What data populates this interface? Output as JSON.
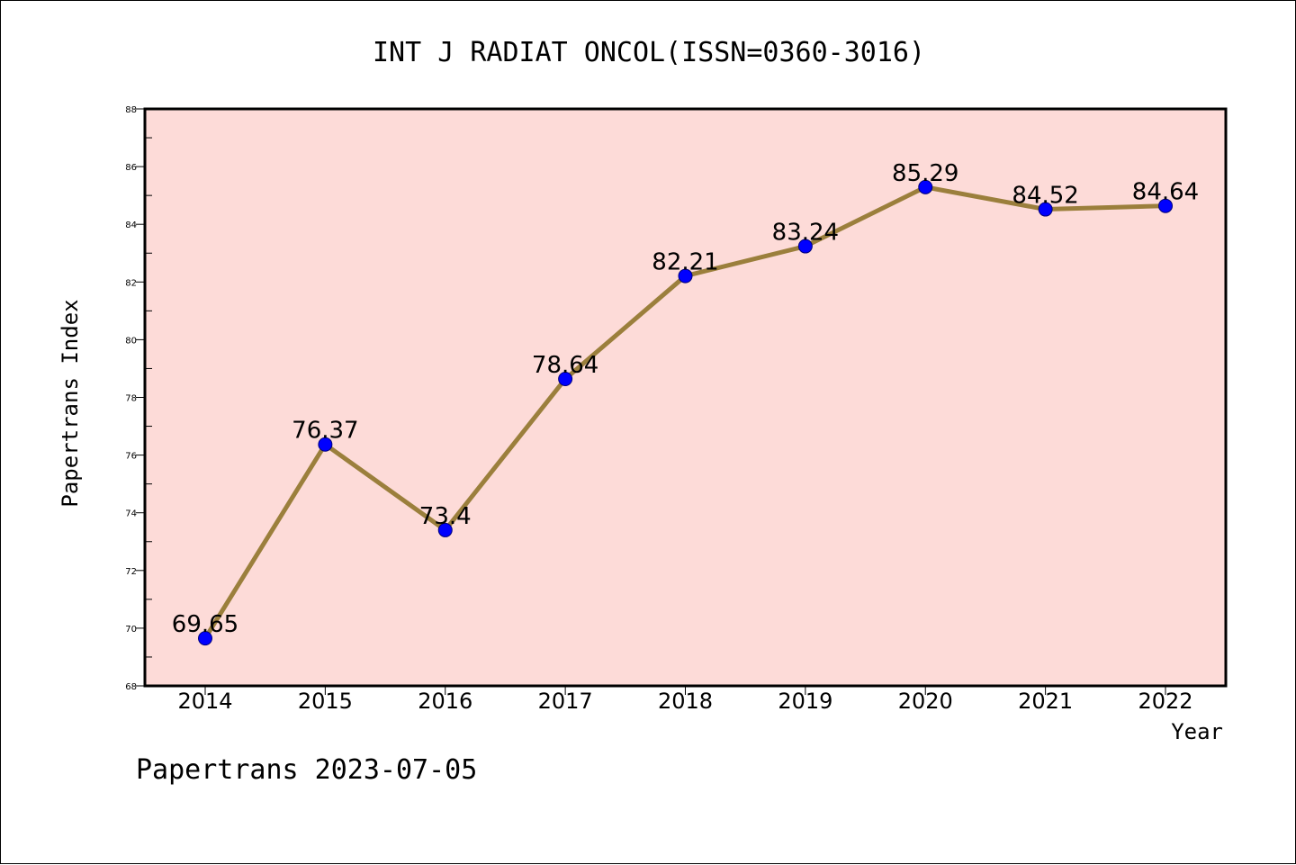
{
  "chart_data": {
    "type": "line",
    "title": "INT J RADIAT ONCOL(ISSN=0360-3016)",
    "xlabel": "Year",
    "ylabel": "Papertrans Index",
    "categories": [
      "2014",
      "2015",
      "2016",
      "2017",
      "2018",
      "2019",
      "2020",
      "2021",
      "2022"
    ],
    "series": [
      {
        "values": [
          69.65,
          76.37,
          73.4,
          78.64,
          82.21,
          83.24,
          85.29,
          84.52,
          84.64
        ],
        "labels": [
          "69.65",
          "76.37",
          "73.4",
          "78.64",
          "82.21",
          "83.24",
          "85.29",
          "84.52",
          "84.64"
        ]
      }
    ],
    "ylim": [
      68,
      88
    ],
    "yticks": [
      "68",
      "70",
      "72",
      "74",
      "76",
      "78",
      "80",
      "82",
      "84",
      "86",
      "88"
    ],
    "grid": false,
    "legend": "none",
    "colors": {
      "plot_background": "#FDDBD8",
      "line": "#9B7F3C",
      "marker": "#0000FF"
    }
  },
  "footer": {
    "watermark": "Papertrans 2023-07-05"
  }
}
